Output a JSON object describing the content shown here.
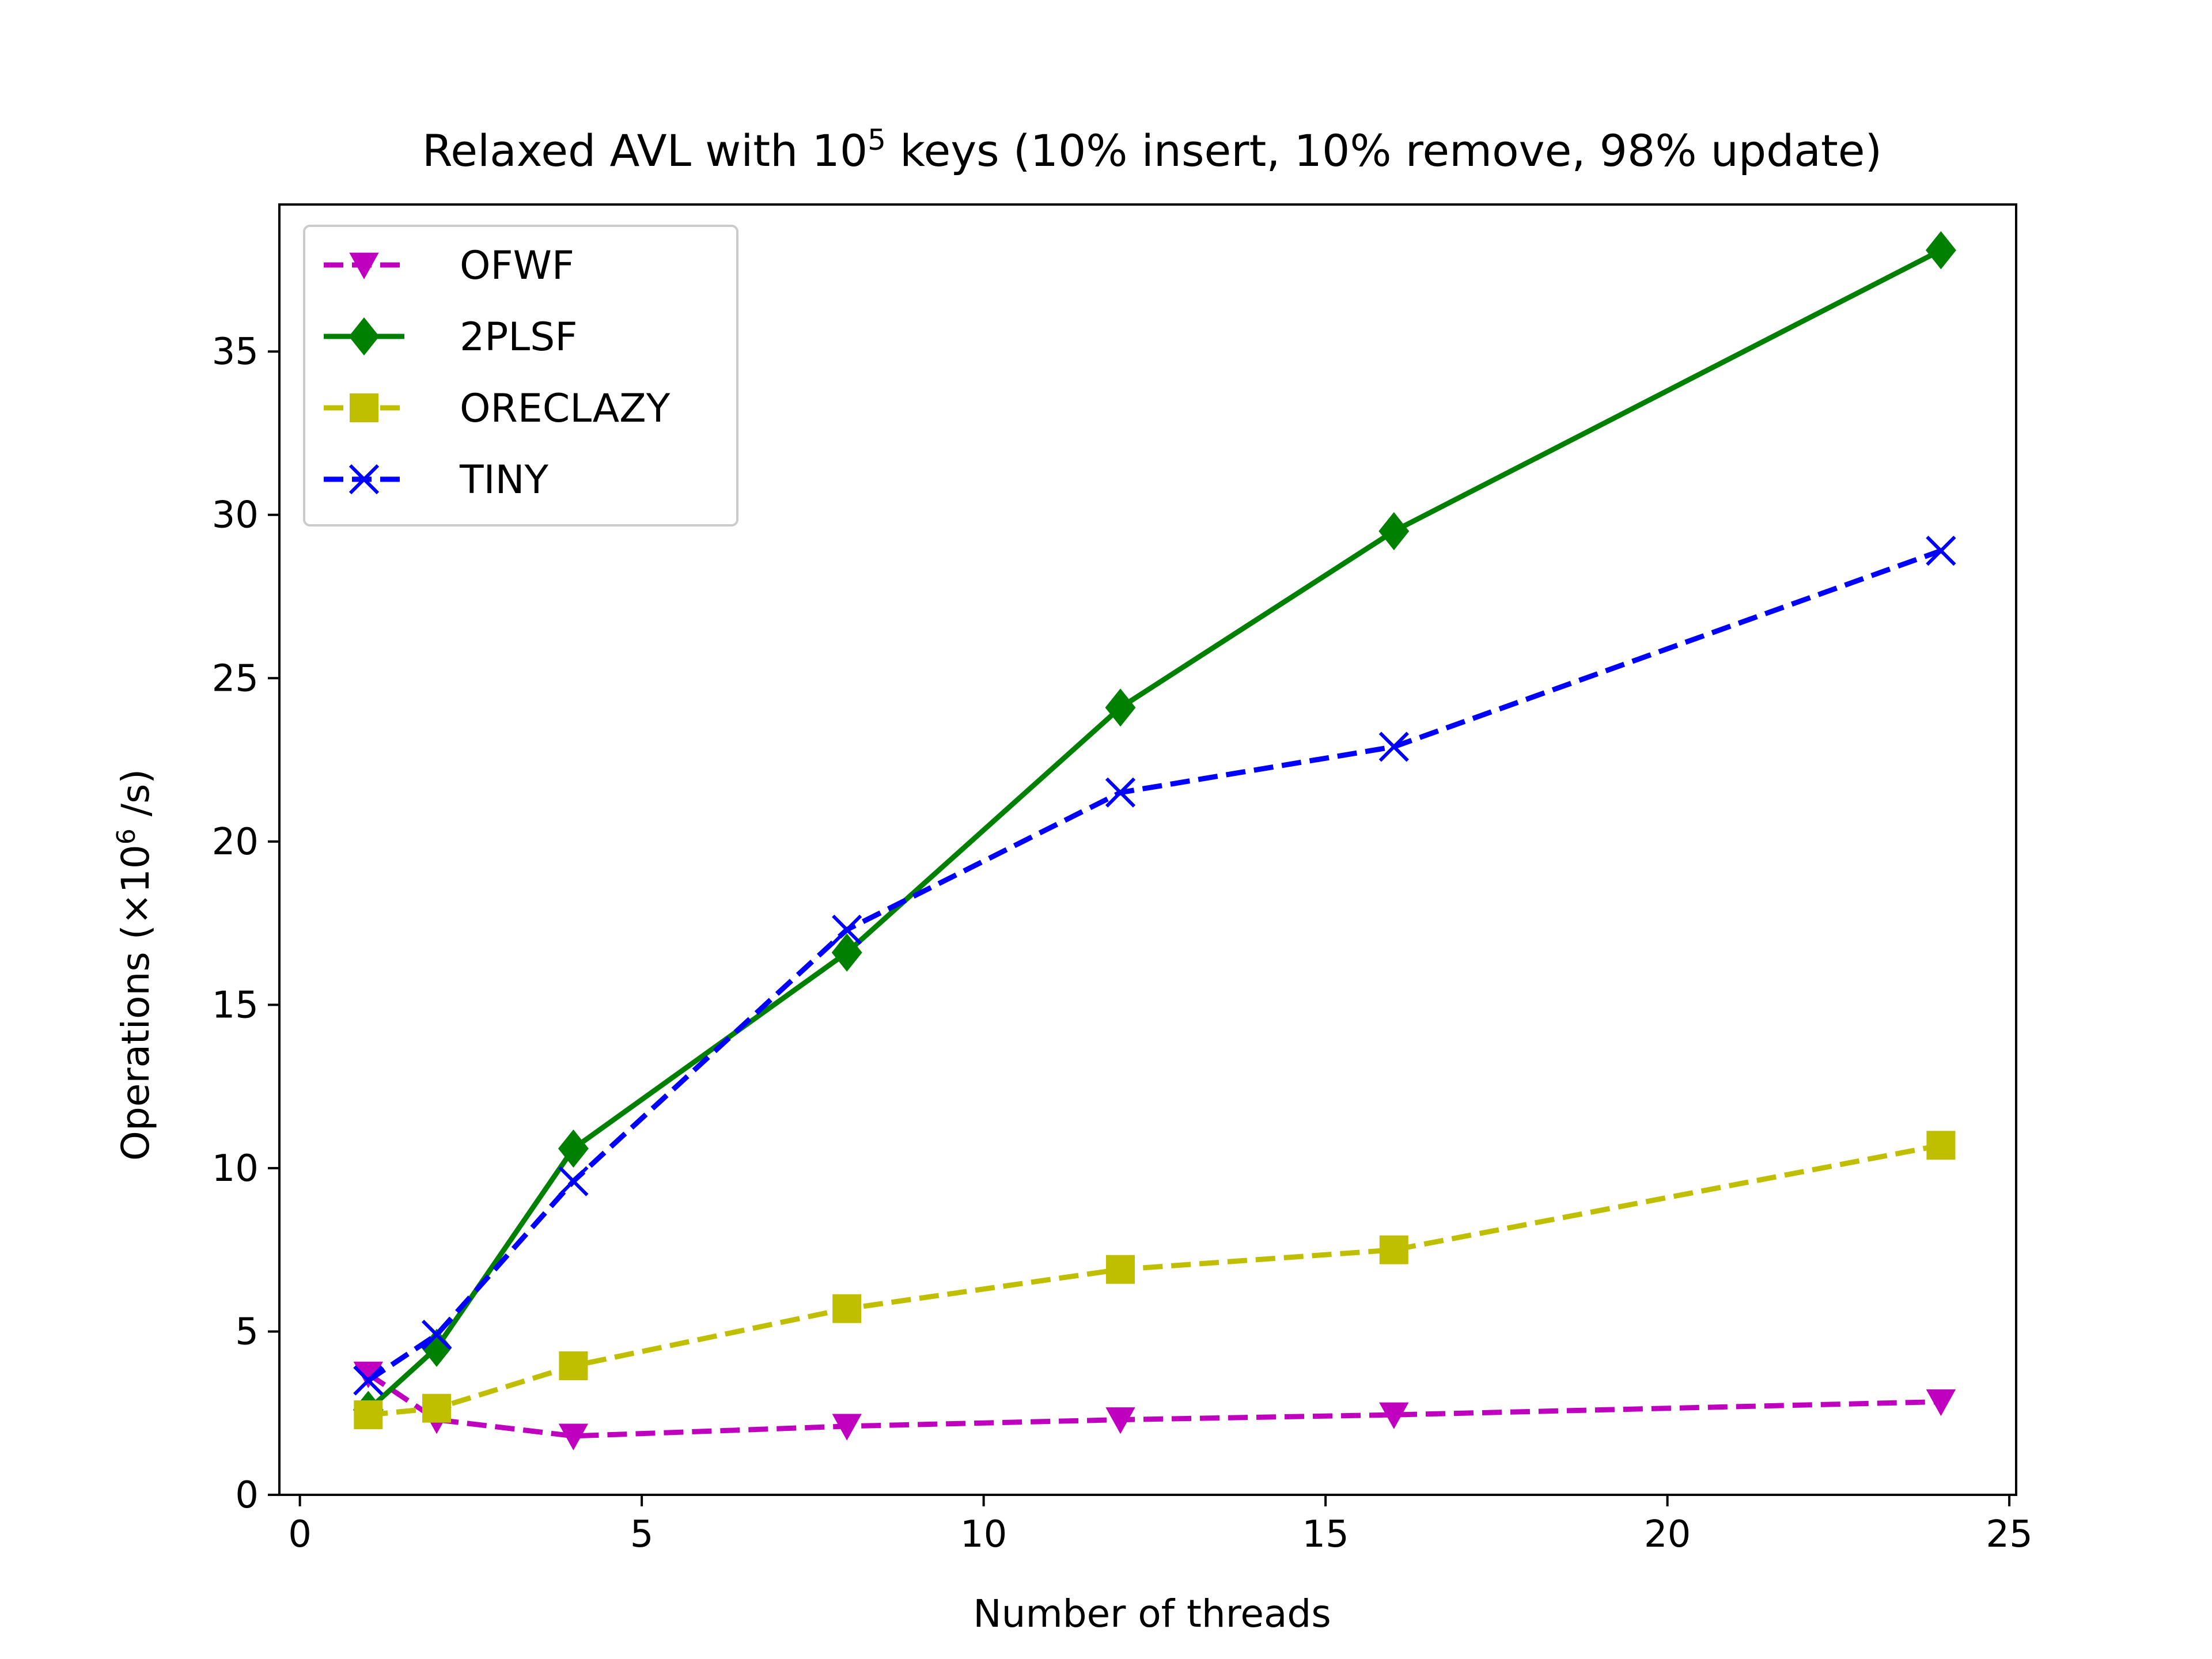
{
  "chart_data": {
    "type": "line",
    "title": {
      "prefix": "Relaxed AVL with 10",
      "superscript": "5",
      "suffix": " keys (10% insert, 10% remove, 98% update)"
    },
    "xlabel": "Number of threads",
    "ylabel": {
      "prefix": "Operations (×10",
      "superscript": "6",
      "suffix": " /s)"
    },
    "xlim": [
      -0.3,
      25.1
    ],
    "ylim": [
      0,
      39.5
    ],
    "xticks": [
      0,
      5,
      10,
      15,
      20,
      25
    ],
    "yticks": [
      0,
      5,
      10,
      15,
      20,
      25,
      30,
      35
    ],
    "xtick_labels": [
      "0",
      "5",
      "10",
      "15",
      "20",
      "25"
    ],
    "ytick_labels": [
      "0",
      "5",
      "10",
      "15",
      "20",
      "25",
      "30",
      "35"
    ],
    "grid": false,
    "legend_position": "top-left",
    "x": [
      1,
      2,
      4,
      8,
      12,
      16,
      24
    ],
    "series": [
      {
        "name": "OFWF",
        "color": "#bf00bf",
        "linestyle": "dashed",
        "marker": "triangle-down",
        "values": [
          3.7,
          2.3,
          1.8,
          2.1,
          2.3,
          2.45,
          2.85
        ]
      },
      {
        "name": "2PLSF",
        "color": "#008000",
        "linestyle": "solid",
        "marker": "diamond",
        "values": [
          2.6,
          4.5,
          10.6,
          16.6,
          24.1,
          29.5,
          38.1
        ]
      },
      {
        "name": "ORECLAZY",
        "color": "#bfbf00",
        "linestyle": "dashed",
        "marker": "square",
        "values": [
          2.45,
          2.65,
          3.95,
          5.7,
          6.9,
          7.5,
          10.7
        ]
      },
      {
        "name": "TINY",
        "color": "#0000ff",
        "linestyle": "dashed",
        "marker": "x",
        "values": [
          3.5,
          4.9,
          9.6,
          17.3,
          21.5,
          22.9,
          28.9
        ]
      }
    ]
  }
}
